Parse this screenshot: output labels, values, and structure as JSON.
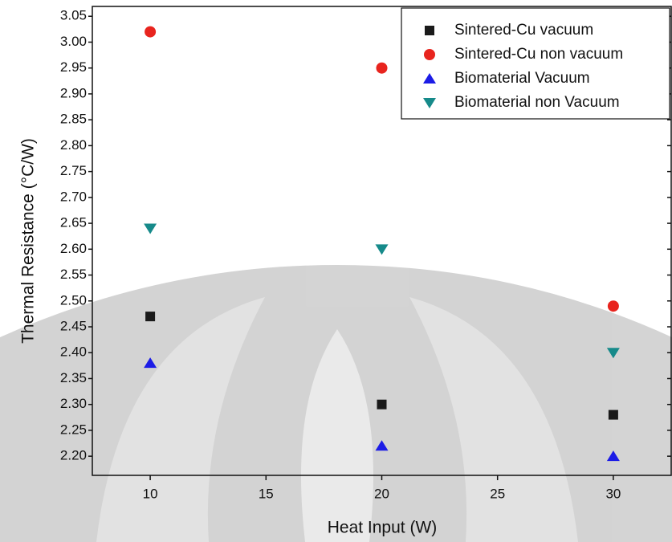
{
  "chart_data": {
    "type": "scatter",
    "x_label": "Heat Input (W)",
    "y_label": "Thermal Resistance (°C/W)",
    "x": [
      10,
      20,
      30
    ],
    "series": [
      {
        "name": "Sintered-Cu vacuum",
        "color": "#1a1a1a",
        "marker": "square",
        "values": [
          2.47,
          2.3,
          2.28
        ]
      },
      {
        "name": "Sintered-Cu non vacuum",
        "color": "#e8241e",
        "marker": "circle",
        "values": [
          3.02,
          2.95,
          2.49
        ]
      },
      {
        "name": "Biomaterial Vacuum",
        "color": "#1c1ce6",
        "marker": "triangle-up",
        "values": [
          2.38,
          2.22,
          2.2
        ]
      },
      {
        "name": "Biomaterial non Vacuum",
        "color": "#168a8a",
        "marker": "triangle-down",
        "values": [
          2.64,
          2.6,
          2.4
        ]
      }
    ],
    "xlim": [
      7.5,
      32.5
    ],
    "ylim": [
      2.163,
      3.069
    ],
    "xticks": [
      10,
      15,
      20,
      25,
      30
    ],
    "yticks": [
      {
        "value": 2.2,
        "label": "2.20"
      },
      2.25,
      {
        "value": 2.3,
        "label": "2.30"
      },
      2.35,
      {
        "value": 2.4,
        "label": "2.40"
      },
      2.45,
      {
        "value": 2.5,
        "label": "2.50"
      },
      2.55,
      {
        "value": 2.6,
        "label": "2.60"
      },
      2.65,
      {
        "value": 2.7,
        "label": "2.70"
      },
      2.75,
      {
        "value": 2.8,
        "label": "2.80"
      },
      2.85,
      {
        "value": 2.9,
        "label": "2.90"
      },
      2.95,
      {
        "value": 3,
        "label": "3.00"
      },
      3.05
    ],
    "grid": false,
    "legend": "top-right"
  }
}
